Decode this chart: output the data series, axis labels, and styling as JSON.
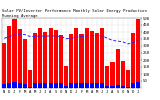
{
  "title": "Solar PV/Inverter Performance Monthly Solar Energy Production Running Average",
  "bar_color": "#ff0000",
  "small_bar_color": "#0000ff",
  "avg_line_color": "#2222ff",
  "background_color": "#ffffff",
  "grid_color": "#aaaaaa",
  "months": [
    "N",
    "D",
    "J",
    "F",
    "M",
    "A",
    "M",
    "J",
    "J",
    "A",
    "S",
    "O",
    "N",
    "D",
    "J",
    "F",
    "M",
    "A",
    "M",
    "J",
    "J",
    "A",
    "S",
    "O",
    "N",
    "D",
    "J"
  ],
  "values": [
    320,
    440,
    490,
    420,
    350,
    130,
    390,
    430,
    400,
    430,
    415,
    380,
    160,
    385,
    425,
    385,
    425,
    405,
    395,
    430,
    160,
    185,
    280,
    190,
    130,
    395,
    490
  ],
  "small_values": [
    28,
    38,
    42,
    35,
    30,
    10,
    33,
    38,
    34,
    38,
    36,
    33,
    13,
    33,
    38,
    33,
    38,
    36,
    34,
    38,
    13,
    16,
    25,
    17,
    10,
    34,
    42
  ],
  "avg_values": [
    355,
    368,
    378,
    385,
    382,
    368,
    368,
    372,
    370,
    372,
    371,
    368,
    352,
    356,
    364,
    367,
    372,
    375,
    374,
    372,
    356,
    340,
    335,
    330,
    315,
    325,
    340
  ],
  "ylim": [
    0,
    500
  ],
  "yticks": [
    50,
    100,
    150,
    200,
    250,
    300,
    350,
    400,
    450,
    500
  ],
  "ylabel_fontsize": 3.0,
  "xlabel_fontsize": 2.8,
  "title_fontsize": 2.8
}
